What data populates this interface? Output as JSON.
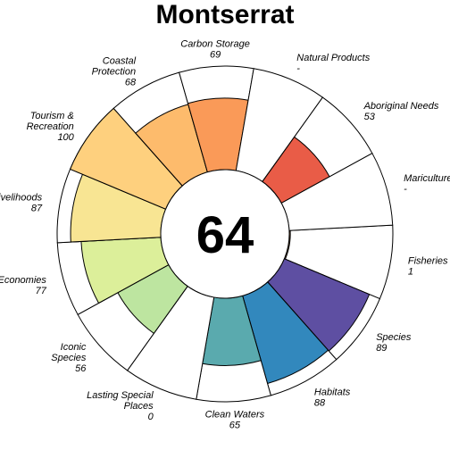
{
  "chart_data": {
    "type": "pie",
    "title": "Montserrat",
    "center_value": "64",
    "max_value": 100,
    "colors": {
      "outline": "#000000",
      "background": "#ffffff"
    },
    "categories": [
      {
        "id": "fisheries",
        "label_lines": [
          "Fisheries"
        ],
        "value_text": "1",
        "value": 1,
        "color": "#fdae61"
      },
      {
        "id": "species",
        "label_lines": [
          "Species"
        ],
        "value_text": "89",
        "value": 89,
        "color": "#5e4fa2"
      },
      {
        "id": "habitats",
        "label_lines": [
          "Habitats"
        ],
        "value_text": "88",
        "value": 88,
        "color": "#3288bd"
      },
      {
        "id": "clean-waters",
        "label_lines": [
          "Clean Waters"
        ],
        "value_text": "65",
        "value": 65,
        "color": "#5aaaae"
      },
      {
        "id": "lasting-special-places",
        "label_lines": [
          "Lasting Special",
          "Places"
        ],
        "value_text": "0",
        "value": 0,
        "color": "#8fd2a4"
      },
      {
        "id": "iconic-species",
        "label_lines": [
          "Iconic",
          "Species"
        ],
        "value_text": "56",
        "value": 56,
        "color": "#bde5a0"
      },
      {
        "id": "economies",
        "label_lines": [
          "Economies"
        ],
        "value_text": "77",
        "value": 77,
        "color": "#dcef9a"
      },
      {
        "id": "livelihoods",
        "label_lines": [
          "Livelihoods"
        ],
        "value_text": "87",
        "value": 87,
        "color": "#f8e593"
      },
      {
        "id": "tourism-recreation",
        "label_lines": [
          "Tourism &",
          "Recreation"
        ],
        "value_text": "100",
        "value": 100,
        "color": "#fed07e"
      },
      {
        "id": "coastal-protection",
        "label_lines": [
          "Coastal",
          "Protection"
        ],
        "value_text": "68",
        "value": 68,
        "color": "#fdbb6c"
      },
      {
        "id": "carbon-storage",
        "label_lines": [
          "Carbon Storage"
        ],
        "value_text": "69",
        "value": 69,
        "color": "#fa9a58"
      },
      {
        "id": "natural-products",
        "label_lines": [
          "Natural Products"
        ],
        "value_text": "-",
        "value": null,
        "color": "#f67a49"
      },
      {
        "id": "aboriginal-needs",
        "label_lines": [
          "Aboriginal Needs"
        ],
        "value_text": "53",
        "value": 53,
        "color": "#e95c47"
      },
      {
        "id": "mariculture",
        "label_lines": [
          "Mariculture"
        ],
        "value_text": "-",
        "value": null,
        "color": "#d53e4f"
      }
    ]
  }
}
